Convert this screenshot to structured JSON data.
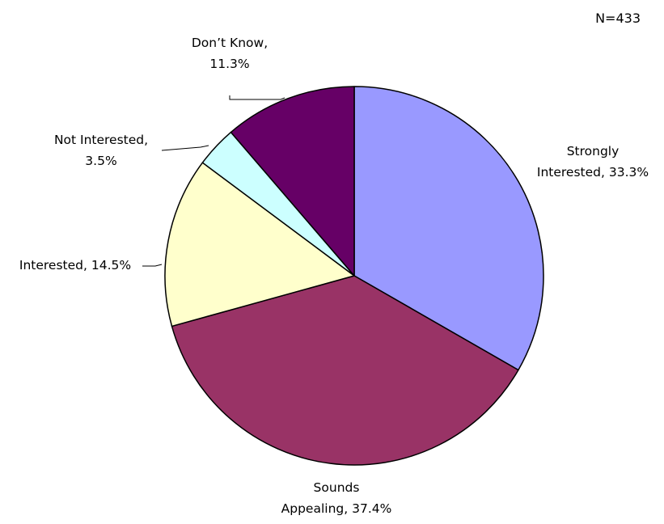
{
  "chart_data": {
    "type": "pie",
    "sample_size_label": "N=433",
    "start_angle_deg": 0,
    "direction": "clockwise",
    "slices": [
      {
        "name": "Strongly Interested",
        "value": 33.3,
        "color": "#9999ff",
        "label_lines": [
          "Strongly",
          "Interested, 33.3%"
        ]
      },
      {
        "name": "Sounds Appealing",
        "value": 37.4,
        "color": "#993366",
        "label_lines": [
          "Sounds",
          "Appealing, 37.4%"
        ]
      },
      {
        "name": "Interested",
        "value": 14.5,
        "color": "#ffffcc",
        "label_lines": [
          "Interested, 14.5%"
        ]
      },
      {
        "name": "Not Interested",
        "value": 3.5,
        "color": "#ccffff",
        "label_lines": [
          "Not Interested,",
          "3.5%"
        ]
      },
      {
        "name": "Don't Know",
        "value": 11.3,
        "color": "#660066",
        "label_lines": [
          "Don’t Know,",
          "11.3%"
        ]
      }
    ],
    "legend": "none",
    "border_color": "#000000"
  }
}
